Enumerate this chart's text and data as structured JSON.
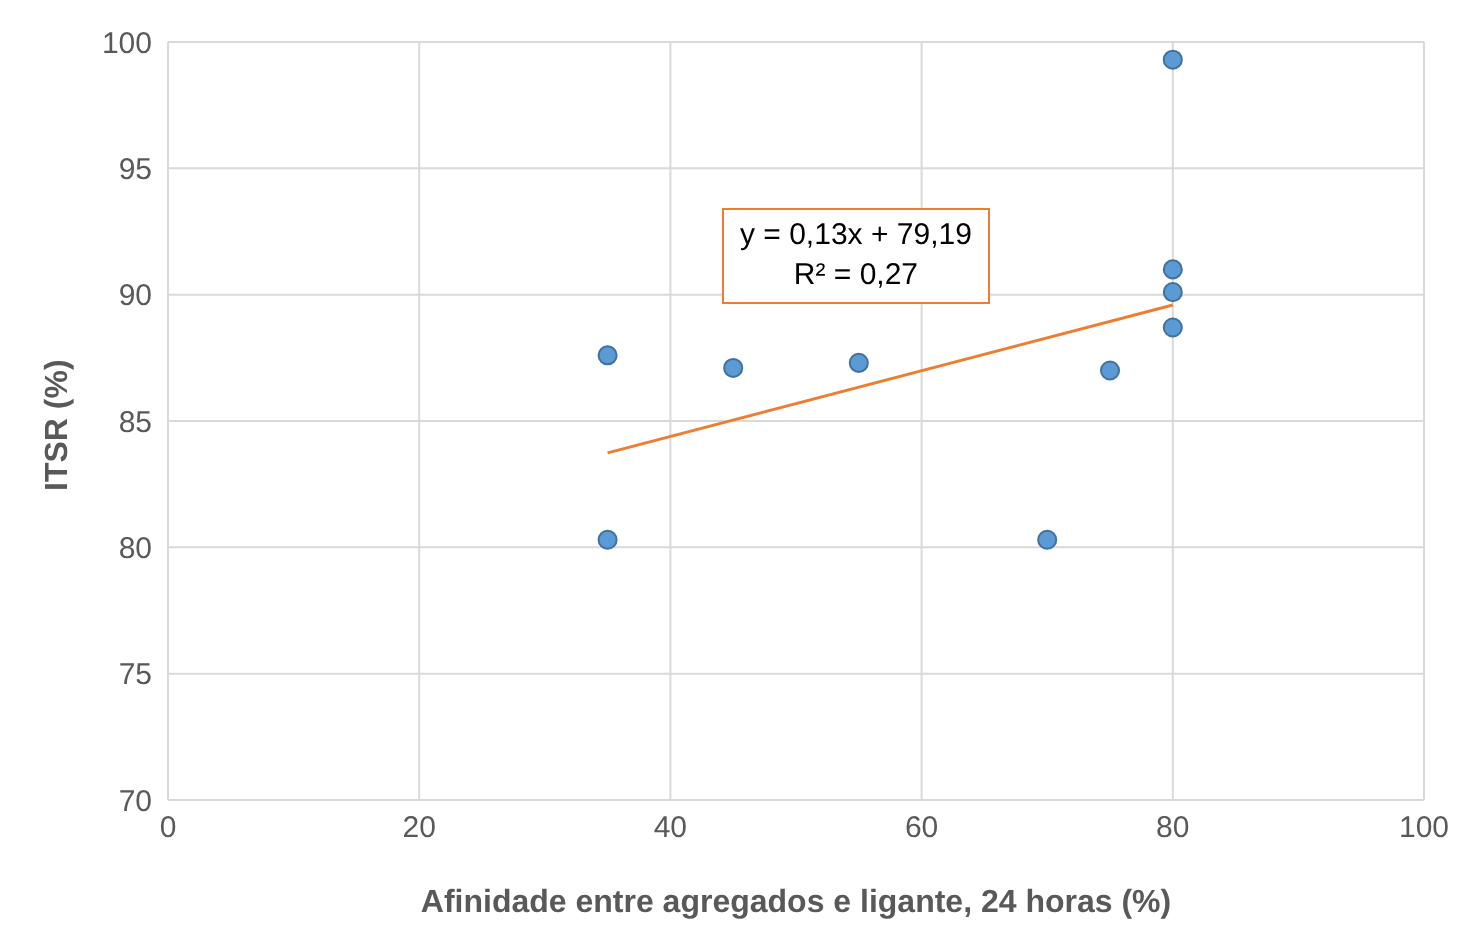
{
  "chart_data": {
    "type": "scatter",
    "xlabel": "Afinidade entre agregados e ligante, 24 horas (%)",
    "ylabel": "ITSR (%)",
    "xlim": [
      0,
      100
    ],
    "xticks": [
      0,
      20,
      40,
      60,
      80,
      100
    ],
    "ylim": [
      70,
      100
    ],
    "yticks": [
      70,
      75,
      80,
      85,
      90,
      95,
      100
    ],
    "grid": true,
    "marker": "circle",
    "annotations": [
      "y = 0,13x + 79,19",
      "R² = 0,27"
    ],
    "series": [
      {
        "color": "#5b9bd5",
        "x": [
          35,
          35,
          45,
          55,
          70,
          75,
          80,
          80,
          80,
          80
        ],
        "values": [
          87.6,
          80.3,
          87.1,
          87.3,
          80.3,
          87.0,
          99.3,
          91.0,
          90.1,
          88.7
        ]
      },
      {
        "type": "line",
        "marker": "none",
        "color": "#ed7d31",
        "x": [
          35,
          80
        ],
        "values": [
          83.74,
          89.59
        ]
      }
    ]
  }
}
